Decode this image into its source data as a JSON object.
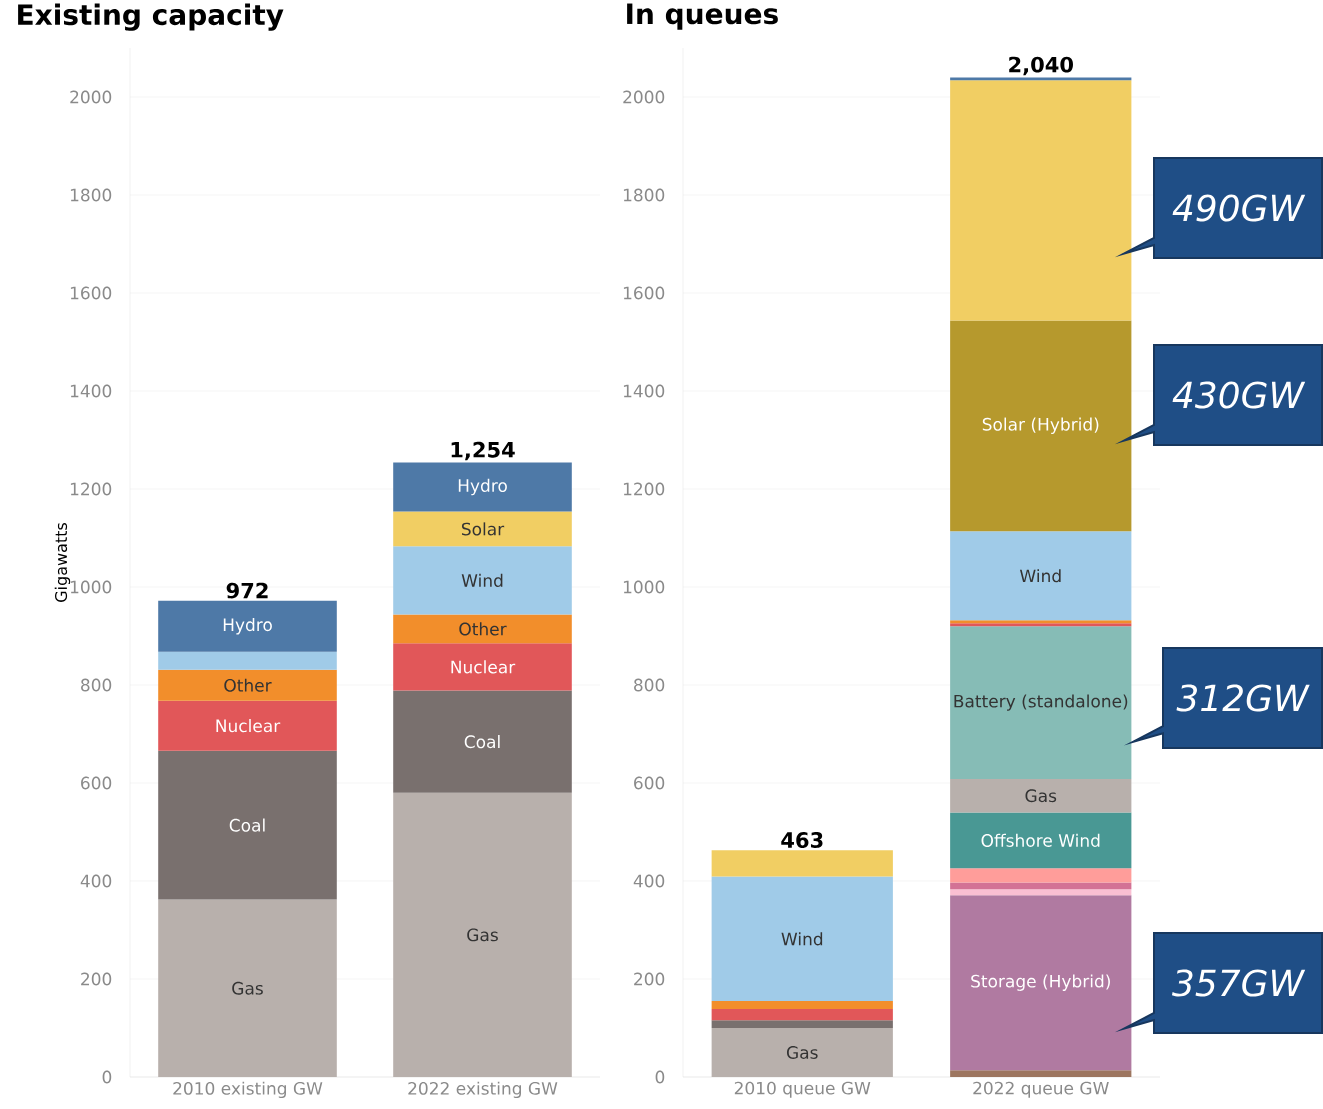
{
  "chart_data": [
    {
      "type": "bar",
      "title": "Existing capacity",
      "ylabel": "Gigawatts",
      "stacked": true,
      "grid": "y",
      "categories": [
        "2010 existing GW",
        "2022 existing GW"
      ],
      "ylim": [
        0,
        2100
      ],
      "yticks": [
        0,
        200,
        400,
        600,
        800,
        1000,
        1200,
        1400,
        1600,
        1800,
        2000
      ],
      "totals": [
        "972",
        "1,254"
      ],
      "series": [
        {
          "name": "Gas",
          "color": "#b8b0ac",
          "values": [
            362,
            580
          ]
        },
        {
          "name": "Coal",
          "color": "#79706e",
          "values": [
            304,
            209
          ]
        },
        {
          "name": "Nuclear",
          "color": "#e15759",
          "values": [
            102,
            96
          ]
        },
        {
          "name": "Other",
          "color": "#f28e2b",
          "values": [
            63,
            59
          ]
        },
        {
          "name": "Wind",
          "color": "#a0cbe8",
          "values": [
            37,
            139
          ]
        },
        {
          "name": "Solar",
          "color": "#f1ce63",
          "values": [
            null,
            71
          ]
        },
        {
          "name": "Hydro",
          "color": "#4e79a7",
          "values": [
            104,
            100
          ]
        }
      ]
    },
    {
      "type": "bar",
      "title": "In queues",
      "stacked": true,
      "grid": "y",
      "categories": [
        "2010 queue GW",
        "2022 queue GW"
      ],
      "ylim": [
        0,
        2100
      ],
      "yticks": [
        0,
        200,
        400,
        600,
        800,
        1000,
        1200,
        1400,
        1600,
        1800,
        2000
      ],
      "totals": [
        "463",
        "2,040"
      ],
      "annotations": [
        "490GW",
        "430GW",
        "312GW",
        "357GW"
      ],
      "series": [
        {
          "color": "#9d7660",
          "values": [
            null,
            14
          ]
        },
        {
          "name": "Storage (Hybrid)",
          "color": "#b07aa1",
          "values": [
            null,
            357
          ]
        },
        {
          "color": "#fabfd2",
          "values": [
            null,
            12
          ]
        },
        {
          "color": "#d37295",
          "values": [
            null,
            14
          ]
        },
        {
          "color": "#ff9d9a",
          "values": [
            null,
            29
          ]
        },
        {
          "name": "Offshore Wind",
          "color": "#499894",
          "values": [
            null,
            114
          ]
        },
        {
          "name": "Gas",
          "color": "#b8b0ac",
          "values": [
            100,
            68
          ]
        },
        {
          "color": "#79706e",
          "values": [
            16,
            null
          ]
        },
        {
          "name": "Battery (standalone)",
          "color": "#86bcb6",
          "values": [
            null,
            312
          ]
        },
        {
          "color": "#e15759",
          "values": [
            23,
            6
          ]
        },
        {
          "color": "#f28e2b",
          "values": [
            16,
            6
          ]
        },
        {
          "name": "Wind",
          "color": "#a0cbe8",
          "values": [
            254,
            182
          ]
        },
        {
          "name": "Solar (Hybrid)",
          "color": "#b6992d",
          "values": [
            null,
            430
          ]
        },
        {
          "color": "#f1ce63",
          "values": [
            54,
            490
          ]
        },
        {
          "color": "#4e79a7",
          "values": [
            null,
            6
          ]
        }
      ]
    }
  ]
}
